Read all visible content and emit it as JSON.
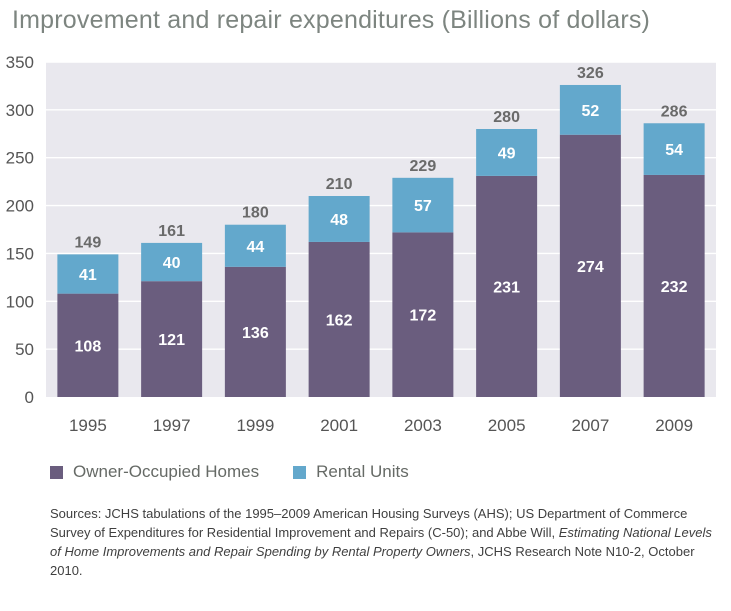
{
  "chart_data": {
    "type": "bar",
    "stacked": true,
    "title": "Improvement and repair expenditures (Billions of dollars)",
    "xlabel": "",
    "ylabel": "",
    "categories": [
      "1995",
      "1997",
      "1999",
      "2001",
      "2003",
      "2005",
      "2007",
      "2009"
    ],
    "series": [
      {
        "name": "Owner-Occupied Homes",
        "color": "#6a5d7e",
        "values": [
          108,
          121,
          136,
          162,
          172,
          231,
          274,
          232
        ]
      },
      {
        "name": "Rental Units",
        "color": "#63a8cc",
        "values": [
          41,
          40,
          44,
          48,
          57,
          49,
          52,
          54
        ]
      }
    ],
    "totals": [
      149,
      161,
      180,
      210,
      229,
      280,
      326,
      286
    ],
    "ylim": [
      0,
      350
    ],
    "yticks": [
      0,
      50,
      100,
      150,
      200,
      250,
      300,
      350
    ],
    "grid": true,
    "legend_position": "bottom-left"
  },
  "sources": {
    "part1": "Sources: JCHS tabulations of the 1995–2009 American Housing Surveys (AHS); US Department of Commerce Survey of Expenditures for Residential Improvement and Repairs (C-50); and Abbe Will, ",
    "italic": "Estimating National Levels of Home Improvements and Repair Spending by Rental Property Owners",
    "part2": ", JCHS Research Note N10-2, October 2010."
  },
  "colors": {
    "background": "#e9e8ee",
    "gridline": "#ffffff",
    "total_label": "#6a6a6a",
    "axis_text": "#555555"
  }
}
